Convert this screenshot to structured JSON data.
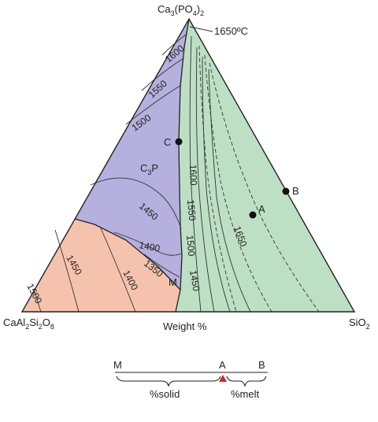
{
  "apex_top": {
    "base": "Ca",
    "sub1": "3",
    "mid": "(PO",
    "sub2": "4",
    "end": ")",
    "sub3": "2"
  },
  "apex_left": {
    "p1": "CaAl",
    "s1": "2",
    "p2": "Si",
    "s2": "2",
    "p3": "O",
    "s3": "8"
  },
  "apex_right": {
    "base": "SiO",
    "sub": "2"
  },
  "axis_caption": "Weight %",
  "phase_c3p": {
    "base": "C",
    "sub": "3",
    "end": "P"
  },
  "top_temperature": "1650ºC",
  "points": {
    "A": "A",
    "B": "B",
    "C": "C",
    "M": "M"
  },
  "isotherms_purple": [
    "1600",
    "1550",
    "1500",
    "1450",
    "1400",
    "1350"
  ],
  "isotherms_pink": [
    "1450",
    "1400",
    "1500"
  ],
  "isotherms_green": [
    "1600",
    "1550",
    "1500",
    "1450",
    "1650"
  ],
  "lever": {
    "m": "M",
    "a": "A",
    "b": "B",
    "solid": "%solid",
    "melt": "%melt"
  },
  "colors": {
    "purple": "#b5b0dd",
    "pink": "#f5c3ad",
    "green": "#bde0c4",
    "fulcrum": "#d9232a"
  }
}
